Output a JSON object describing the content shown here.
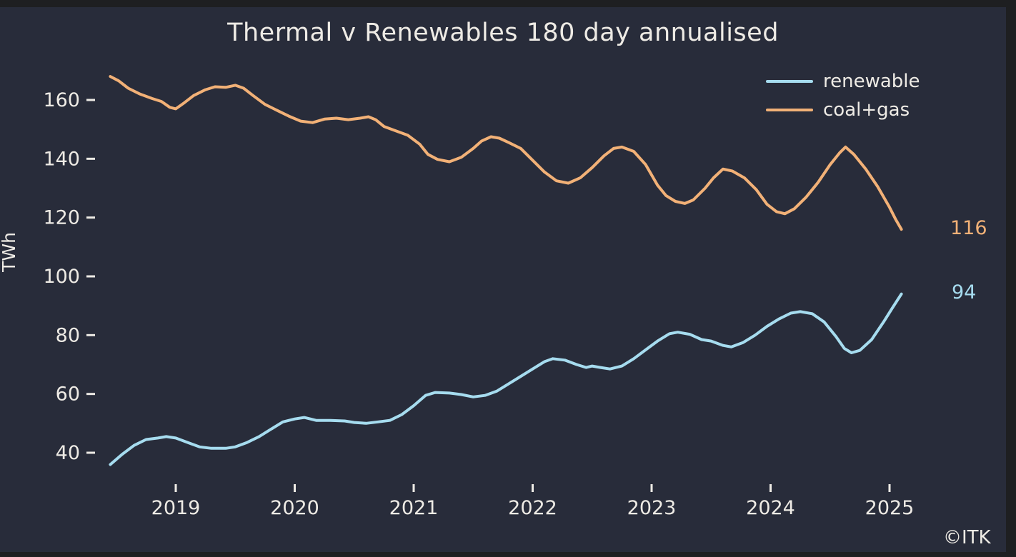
{
  "chart_data": {
    "type": "line",
    "title": "Thermal v Renewables 180 day annualised",
    "ylabel": "TWh",
    "xlabel": "",
    "watermark": "©ITK",
    "grid": false,
    "legend_position": "upper right",
    "x_range": [
      2018.4,
      2025.25
    ],
    "ylim": [
      30,
      172
    ],
    "x_ticks": [
      {
        "value": 2019,
        "label": "2019"
      },
      {
        "value": 2020,
        "label": "2020"
      },
      {
        "value": 2021,
        "label": "2021"
      },
      {
        "value": 2022,
        "label": "2022"
      },
      {
        "value": 2023,
        "label": "2023"
      },
      {
        "value": 2024,
        "label": "2024"
      },
      {
        "value": 2025,
        "label": "2025"
      }
    ],
    "y_ticks": [
      {
        "value": 40,
        "label": "40"
      },
      {
        "value": 60,
        "label": "60"
      },
      {
        "value": 80,
        "label": "80"
      },
      {
        "value": 100,
        "label": "100"
      },
      {
        "value": 120,
        "label": "120"
      },
      {
        "value": 140,
        "label": "140"
      },
      {
        "value": 160,
        "label": "160"
      }
    ],
    "legend": [
      {
        "label": "renewable",
        "color": "#a6dcef"
      },
      {
        "label": "coal+gas",
        "color": "#f2b177"
      }
    ],
    "end_labels": [
      {
        "text": "116",
        "series": "coal+gas",
        "color": "#f2b177"
      },
      {
        "text": "94",
        "series": "renewable",
        "color": "#a6dcef"
      }
    ],
    "colors": {
      "background": "#282c3a",
      "frame": "#1e1f21",
      "text": "#eeebe5"
    },
    "series": [
      {
        "name": "renewable",
        "color": "#a6dcef",
        "points": [
          [
            2018.45,
            36
          ],
          [
            2018.55,
            39.5
          ],
          [
            2018.65,
            42.5
          ],
          [
            2018.75,
            44.5
          ],
          [
            2018.85,
            45
          ],
          [
            2018.92,
            45.5
          ],
          [
            2019.0,
            45
          ],
          [
            2019.1,
            43.5
          ],
          [
            2019.2,
            42
          ],
          [
            2019.3,
            41.5
          ],
          [
            2019.42,
            41.5
          ],
          [
            2019.5,
            42
          ],
          [
            2019.6,
            43.5
          ],
          [
            2019.7,
            45.5
          ],
          [
            2019.8,
            48
          ],
          [
            2019.9,
            50.5
          ],
          [
            2020.0,
            51.5
          ],
          [
            2020.08,
            52
          ],
          [
            2020.18,
            51
          ],
          [
            2020.3,
            51
          ],
          [
            2020.42,
            50.8
          ],
          [
            2020.5,
            50.3
          ],
          [
            2020.6,
            50
          ],
          [
            2020.7,
            50.5
          ],
          [
            2020.8,
            51
          ],
          [
            2020.9,
            53
          ],
          [
            2021.0,
            56
          ],
          [
            2021.1,
            59.5
          ],
          [
            2021.18,
            60.5
          ],
          [
            2021.3,
            60.3
          ],
          [
            2021.4,
            59.8
          ],
          [
            2021.5,
            59
          ],
          [
            2021.6,
            59.5
          ],
          [
            2021.7,
            61
          ],
          [
            2021.8,
            63.5
          ],
          [
            2021.9,
            66
          ],
          [
            2022.0,
            68.5
          ],
          [
            2022.1,
            71
          ],
          [
            2022.17,
            72
          ],
          [
            2022.27,
            71.5
          ],
          [
            2022.37,
            70
          ],
          [
            2022.45,
            69
          ],
          [
            2022.5,
            69.5
          ],
          [
            2022.57,
            69
          ],
          [
            2022.65,
            68.5
          ],
          [
            2022.75,
            69.5
          ],
          [
            2022.85,
            72
          ],
          [
            2022.95,
            75
          ],
          [
            2023.05,
            78
          ],
          [
            2023.15,
            80.5
          ],
          [
            2023.22,
            81
          ],
          [
            2023.32,
            80.3
          ],
          [
            2023.42,
            78.5
          ],
          [
            2023.5,
            78
          ],
          [
            2023.6,
            76.5
          ],
          [
            2023.67,
            76
          ],
          [
            2023.77,
            77.5
          ],
          [
            2023.87,
            80
          ],
          [
            2023.97,
            83
          ],
          [
            2024.07,
            85.5
          ],
          [
            2024.17,
            87.5
          ],
          [
            2024.25,
            88
          ],
          [
            2024.35,
            87.3
          ],
          [
            2024.45,
            84.5
          ],
          [
            2024.55,
            79.5
          ],
          [
            2024.62,
            75.5
          ],
          [
            2024.68,
            74
          ],
          [
            2024.75,
            74.8
          ],
          [
            2024.85,
            78.5
          ],
          [
            2024.95,
            84.5
          ],
          [
            2025.02,
            89
          ],
          [
            2025.1,
            94
          ]
        ]
      },
      {
        "name": "coal+gas",
        "color": "#f2b177",
        "points": [
          [
            2018.45,
            168
          ],
          [
            2018.52,
            166.5
          ],
          [
            2018.6,
            164
          ],
          [
            2018.7,
            162
          ],
          [
            2018.8,
            160.5
          ],
          [
            2018.88,
            159.5
          ],
          [
            2018.95,
            157.5
          ],
          [
            2019.0,
            157
          ],
          [
            2019.07,
            159
          ],
          [
            2019.15,
            161.5
          ],
          [
            2019.25,
            163.5
          ],
          [
            2019.33,
            164.5
          ],
          [
            2019.42,
            164.3
          ],
          [
            2019.5,
            165
          ],
          [
            2019.57,
            164
          ],
          [
            2019.65,
            161.5
          ],
          [
            2019.75,
            158.5
          ],
          [
            2019.85,
            156.5
          ],
          [
            2019.95,
            154.5
          ],
          [
            2020.05,
            152.8
          ],
          [
            2020.15,
            152.3
          ],
          [
            2020.25,
            153.5
          ],
          [
            2020.35,
            153.8
          ],
          [
            2020.45,
            153.3
          ],
          [
            2020.55,
            153.8
          ],
          [
            2020.62,
            154.3
          ],
          [
            2020.68,
            153.3
          ],
          [
            2020.75,
            151
          ],
          [
            2020.85,
            149.5
          ],
          [
            2020.95,
            148
          ],
          [
            2021.05,
            145
          ],
          [
            2021.12,
            141.5
          ],
          [
            2021.2,
            139.8
          ],
          [
            2021.3,
            139
          ],
          [
            2021.4,
            140.5
          ],
          [
            2021.5,
            143.5
          ],
          [
            2021.57,
            146
          ],
          [
            2021.65,
            147.5
          ],
          [
            2021.72,
            147
          ],
          [
            2021.8,
            145.5
          ],
          [
            2021.9,
            143.5
          ],
          [
            2022.0,
            139.5
          ],
          [
            2022.1,
            135.5
          ],
          [
            2022.2,
            132.5
          ],
          [
            2022.3,
            131.7
          ],
          [
            2022.4,
            133.5
          ],
          [
            2022.5,
            137
          ],
          [
            2022.6,
            141
          ],
          [
            2022.68,
            143.5
          ],
          [
            2022.75,
            144
          ],
          [
            2022.85,
            142.5
          ],
          [
            2022.95,
            138
          ],
          [
            2023.05,
            131
          ],
          [
            2023.12,
            127.5
          ],
          [
            2023.2,
            125.5
          ],
          [
            2023.28,
            124.8
          ],
          [
            2023.35,
            126
          ],
          [
            2023.45,
            130
          ],
          [
            2023.52,
            133.5
          ],
          [
            2023.6,
            136.5
          ],
          [
            2023.68,
            135.8
          ],
          [
            2023.78,
            133.5
          ],
          [
            2023.88,
            129.5
          ],
          [
            2023.97,
            124.5
          ],
          [
            2024.05,
            122
          ],
          [
            2024.12,
            121.3
          ],
          [
            2024.2,
            123
          ],
          [
            2024.3,
            127
          ],
          [
            2024.4,
            132
          ],
          [
            2024.5,
            138
          ],
          [
            2024.58,
            142
          ],
          [
            2024.63,
            144
          ],
          [
            2024.7,
            141.5
          ],
          [
            2024.8,
            136.5
          ],
          [
            2024.9,
            130.5
          ],
          [
            2025.0,
            123.5
          ],
          [
            2025.05,
            119.5
          ],
          [
            2025.1,
            116
          ]
        ]
      }
    ]
  }
}
